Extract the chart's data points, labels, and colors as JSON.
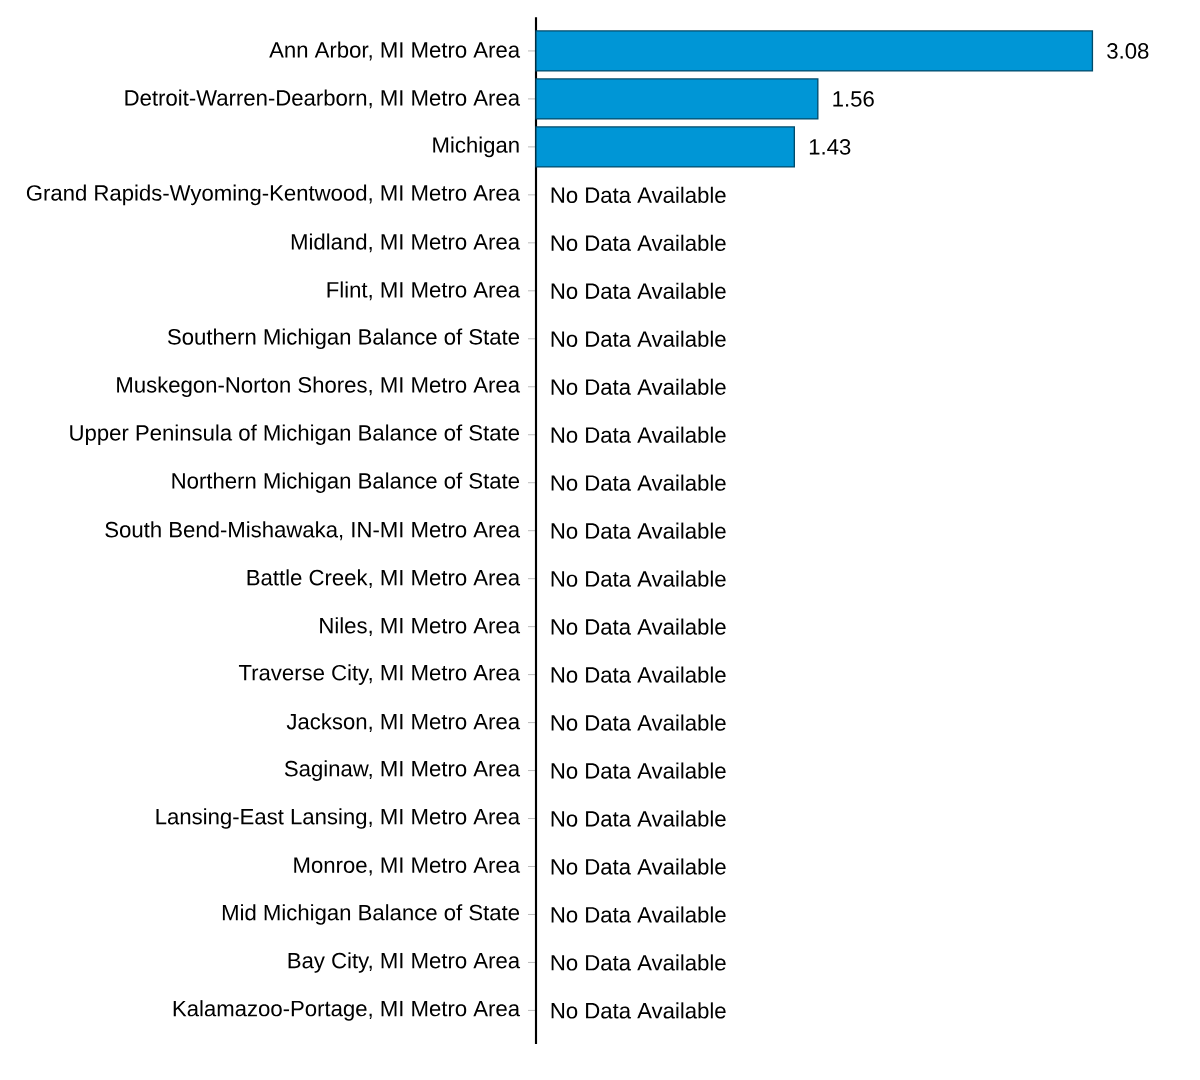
{
  "chart_data": {
    "type": "bar",
    "orientation": "horizontal",
    "categories": [
      "Ann Arbor, MI Metro Area",
      "Detroit-Warren-Dearborn, MI Metro Area",
      "Michigan",
      "Grand Rapids-Wyoming-Kentwood, MI Metro Area",
      "Midland, MI Metro Area",
      "Flint, MI Metro Area",
      "Southern Michigan Balance of State",
      "Muskegon-Norton Shores, MI Metro Area",
      "Upper Peninsula of Michigan Balance of State",
      "Northern Michigan Balance of State",
      "South Bend-Mishawaka, IN-MI Metro Area",
      "Battle Creek, MI Metro Area",
      "Niles, MI Metro Area",
      "Traverse City, MI Metro Area",
      "Jackson, MI Metro Area",
      "Saginaw, MI Metro Area",
      "Lansing-East Lansing, MI Metro Area",
      "Monroe, MI Metro Area",
      "Mid Michigan Balance of State",
      "Bay City, MI Metro Area",
      "Kalamazoo-Portage, MI Metro Area"
    ],
    "values": [
      3.08,
      1.56,
      1.43,
      null,
      null,
      null,
      null,
      null,
      null,
      null,
      null,
      null,
      null,
      null,
      null,
      null,
      null,
      null,
      null,
      null,
      null
    ],
    "value_labels": [
      "3.08",
      "1.56",
      "1.43",
      "No Data Available",
      "No Data Available",
      "No Data Available",
      "No Data Available",
      "No Data Available",
      "No Data Available",
      "No Data Available",
      "No Data Available",
      "No Data Available",
      "No Data Available",
      "No Data Available",
      "No Data Available",
      "No Data Available",
      "No Data Available",
      "No Data Available",
      "No Data Available",
      "No Data Available",
      "No Data Available"
    ],
    "color": "#0096d6"
  }
}
